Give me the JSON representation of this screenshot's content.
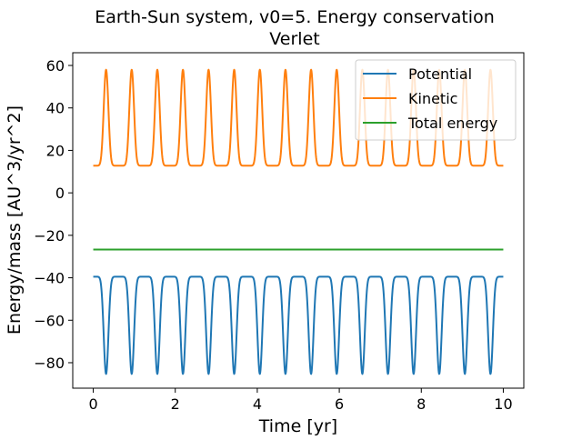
{
  "chart_data": {
    "type": "line",
    "title": "Earth-Sun system, v0=5. Energy conservation",
    "subtitle": "Verlet",
    "xlabel": "Time [yr]",
    "ylabel": "Energy/mass [AU^3/yr^2]",
    "xlim": [
      -0.5,
      10.5
    ],
    "ylim": [
      -92,
      66
    ],
    "xticks": [
      0,
      2,
      4,
      6,
      8,
      10
    ],
    "xtick_labels": [
      "0",
      "2",
      "4",
      "6",
      "8",
      "10"
    ],
    "yticks": [
      -80,
      -60,
      -40,
      -20,
      0,
      20,
      40,
      60
    ],
    "ytick_labels": [
      "−80",
      "−60",
      "−40",
      "−20",
      "0",
      "20",
      "40",
      "60"
    ],
    "grid": false,
    "legend_position": "top-right",
    "period_yr": 0.625,
    "orbit_count": 16,
    "series": [
      {
        "name": "Potential",
        "color": "#1f77b4",
        "x": [
          0,
          10
        ],
        "min": -85.3,
        "max": -39.5,
        "start_value": -39.5,
        "extremum_at_start": "max"
      },
      {
        "name": "Kinetic",
        "color": "#ff7f0e",
        "x": [
          0,
          10
        ],
        "min": 12.8,
        "max": 58.0,
        "start_value": 12.8,
        "extremum_at_start": "min"
      },
      {
        "name": "Total energy",
        "color": "#2ca02c",
        "x": [
          0,
          10
        ],
        "min": -26.7,
        "max": -26.7,
        "start_value": -26.7,
        "extremum_at_start": "constant"
      }
    ]
  }
}
